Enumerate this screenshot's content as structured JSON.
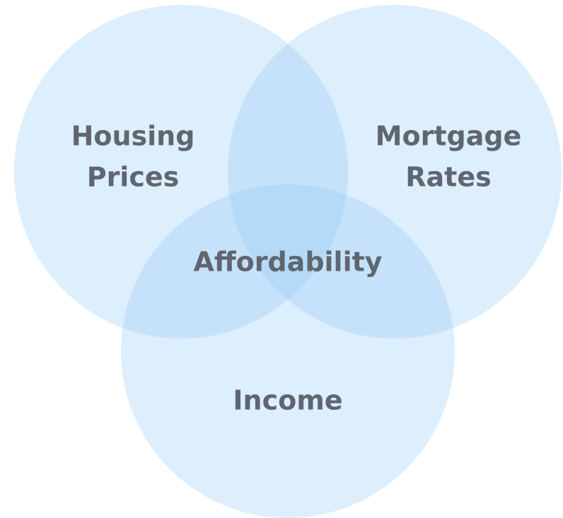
{
  "sets": [
    {
      "label": [
        "Housing",
        "Prices"
      ]
    },
    {
      "label": [
        "Mortgage",
        "Rates"
      ]
    },
    {
      "label": [
        "Income"
      ]
    }
  ],
  "center": {
    "label": "Affordability"
  }
}
